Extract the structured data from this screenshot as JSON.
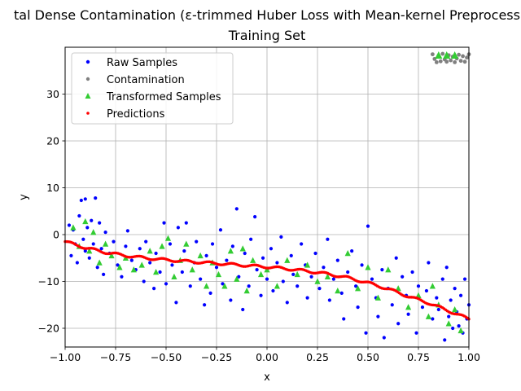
{
  "chart_data": {
    "type": "scatter",
    "title": "tal Dense Contamination (ε-trimmed Huber Loss with Mean-kernel Preprocess",
    "subtitle": "Training Set",
    "xlabel": "x",
    "ylabel": "y",
    "xlim": [
      -1.0,
      1.0
    ],
    "ylim": [
      -24,
      40
    ],
    "xticks": [
      "−1.00",
      "−0.75",
      "−0.50",
      "−0.25",
      "0.00",
      "0.25",
      "0.50",
      "0.75",
      "1.00"
    ],
    "yticks": [
      "−20",
      "−10",
      "0",
      "10",
      "20",
      "30"
    ],
    "grid": true,
    "legend_placement": "upper-left",
    "series": [
      {
        "name": "Raw Samples",
        "color": "#0000ff",
        "marker": "dot",
        "points": [
          [
            -0.98,
            2.0
          ],
          [
            -0.97,
            -4.5
          ],
          [
            -0.96,
            1.0
          ],
          [
            -0.95,
            -2.0
          ],
          [
            -0.94,
            -6.0
          ],
          [
            -0.93,
            4.0
          ],
          [
            -0.92,
            7.3
          ],
          [
            -0.91,
            -1.0
          ],
          [
            -0.9,
            7.6
          ],
          [
            -0.9,
            -3.5
          ],
          [
            -0.89,
            1.5
          ],
          [
            -0.88,
            -5.0
          ],
          [
            -0.87,
            3.0
          ],
          [
            -0.86,
            -2.0
          ],
          [
            -0.85,
            7.8
          ],
          [
            -0.84,
            -7.0
          ],
          [
            -0.83,
            2.5
          ],
          [
            -0.82,
            -3.0
          ],
          [
            -0.81,
            -8.5
          ],
          [
            -0.8,
            0.5
          ],
          [
            -0.78,
            -4.0
          ],
          [
            -0.76,
            -1.5
          ],
          [
            -0.74,
            -6.5
          ],
          [
            -0.72,
            -9.0
          ],
          [
            -0.7,
            -2.5
          ],
          [
            -0.69,
            0.8
          ],
          [
            -0.67,
            -5.5
          ],
          [
            -0.65,
            -7.5
          ],
          [
            -0.63,
            -3.0
          ],
          [
            -0.61,
            -10.0
          ],
          [
            -0.6,
            -1.5
          ],
          [
            -0.58,
            -6.0
          ],
          [
            -0.56,
            -11.5
          ],
          [
            -0.55,
            -4.0
          ],
          [
            -0.53,
            -8.0
          ],
          [
            -0.51,
            2.5
          ],
          [
            -0.5,
            -10.5
          ],
          [
            -0.48,
            -2.0
          ],
          [
            -0.47,
            -6.5
          ],
          [
            -0.45,
            -14.5
          ],
          [
            -0.44,
            1.5
          ],
          [
            -0.42,
            -8.0
          ],
          [
            -0.41,
            -3.5
          ],
          [
            -0.4,
            2.5
          ],
          [
            -0.38,
            -11.0
          ],
          [
            -0.36,
            -6.0
          ],
          [
            -0.35,
            -1.5
          ],
          [
            -0.33,
            -9.5
          ],
          [
            -0.31,
            -15.0
          ],
          [
            -0.3,
            -4.5
          ],
          [
            -0.28,
            -12.5
          ],
          [
            -0.27,
            -2.0
          ],
          [
            -0.25,
            -7.0
          ],
          [
            -0.23,
            1.0
          ],
          [
            -0.22,
            -10.5
          ],
          [
            -0.2,
            -5.5
          ],
          [
            -0.18,
            -14.0
          ],
          [
            -0.17,
            -2.5
          ],
          [
            -0.15,
            5.5
          ],
          [
            -0.14,
            -9.0
          ],
          [
            -0.12,
            -16.0
          ],
          [
            -0.11,
            -4.0
          ],
          [
            -0.09,
            -11.0
          ],
          [
            -0.08,
            -1.0
          ],
          [
            -0.06,
            3.8
          ],
          [
            -0.05,
            -7.5
          ],
          [
            -0.03,
            -13.0
          ],
          [
            -0.02,
            -5.0
          ],
          [
            0.0,
            -9.5
          ],
          [
            0.02,
            -3.0
          ],
          [
            0.03,
            -12.0
          ],
          [
            0.05,
            -6.0
          ],
          [
            0.07,
            -0.5
          ],
          [
            0.08,
            -10.0
          ],
          [
            0.1,
            -14.5
          ],
          [
            0.12,
            -4.5
          ],
          [
            0.13,
            -8.5
          ],
          [
            0.15,
            -11.0
          ],
          [
            0.17,
            -2.0
          ],
          [
            0.19,
            -6.5
          ],
          [
            0.2,
            -13.5
          ],
          [
            0.22,
            -9.0
          ],
          [
            0.24,
            -4.0
          ],
          [
            0.26,
            -11.5
          ],
          [
            0.28,
            -7.0
          ],
          [
            0.3,
            -1.0
          ],
          [
            0.31,
            -14.0
          ],
          [
            0.33,
            -9.5
          ],
          [
            0.35,
            -5.5
          ],
          [
            0.37,
            -12.5
          ],
          [
            0.38,
            -18.0
          ],
          [
            0.4,
            -8.0
          ],
          [
            0.42,
            -3.5
          ],
          [
            0.44,
            -11.0
          ],
          [
            0.45,
            -15.5
          ],
          [
            0.47,
            -6.5
          ],
          [
            0.49,
            -21.0
          ],
          [
            0.5,
            1.8
          ],
          [
            0.52,
            -9.5
          ],
          [
            0.54,
            -13.5
          ],
          [
            0.55,
            -17.5
          ],
          [
            0.57,
            -7.5
          ],
          [
            0.58,
            -22.0
          ],
          [
            0.6,
            -11.5
          ],
          [
            0.62,
            -15.0
          ],
          [
            0.64,
            -5.0
          ],
          [
            0.65,
            -19.0
          ],
          [
            0.67,
            -9.0
          ],
          [
            0.69,
            -13.0
          ],
          [
            0.7,
            -17.0
          ],
          [
            0.72,
            -8.0
          ],
          [
            0.74,
            -21.0
          ],
          [
            0.75,
            -11.0
          ],
          [
            0.77,
            -15.5
          ],
          [
            0.79,
            -12.0
          ],
          [
            0.8,
            -6.0
          ],
          [
            0.82,
            -18.0
          ],
          [
            0.84,
            -13.5
          ],
          [
            0.85,
            -16.0
          ],
          [
            0.87,
            -9.5
          ],
          [
            0.88,
            -22.5
          ],
          [
            0.89,
            -7.0
          ],
          [
            0.9,
            -17.5
          ],
          [
            0.91,
            -14.0
          ],
          [
            0.92,
            -20.0
          ],
          [
            0.93,
            -11.5
          ],
          [
            0.94,
            -16.5
          ],
          [
            0.95,
            -19.5
          ],
          [
            0.96,
            -13.0
          ],
          [
            0.97,
            -21.0
          ],
          [
            0.98,
            -9.5
          ],
          [
            0.99,
            -18.0
          ],
          [
            1.0,
            -15.0
          ]
        ]
      },
      {
        "name": "Contamination",
        "color": "#808080",
        "marker": "dot",
        "points": [
          [
            0.82,
            38.5
          ],
          [
            0.83,
            37.5
          ],
          [
            0.84,
            36.8
          ],
          [
            0.85,
            38.2
          ],
          [
            0.86,
            37.0
          ],
          [
            0.87,
            38.6
          ],
          [
            0.88,
            37.4
          ],
          [
            0.89,
            36.9
          ],
          [
            0.9,
            38.3
          ],
          [
            0.91,
            37.2
          ],
          [
            0.92,
            38.0
          ],
          [
            0.93,
            36.8
          ],
          [
            0.94,
            37.6
          ],
          [
            0.95,
            38.4
          ],
          [
            0.96,
            37.1
          ],
          [
            0.97,
            38.1
          ],
          [
            0.98,
            36.9
          ],
          [
            0.99,
            37.8
          ],
          [
            1.0,
            38.5
          ]
        ]
      },
      {
        "name": "Transformed Samples",
        "color": "#33cc33",
        "marker": "triangle",
        "points": [
          [
            -0.96,
            1.5
          ],
          [
            -0.93,
            -2.5
          ],
          [
            -0.9,
            2.8
          ],
          [
            -0.88,
            -3.5
          ],
          [
            -0.86,
            0.5
          ],
          [
            -0.83,
            -6.0
          ],
          [
            -0.8,
            -2.0
          ],
          [
            -0.77,
            -4.5
          ],
          [
            -0.73,
            -7.0
          ],
          [
            -0.7,
            -5.0
          ],
          [
            -0.66,
            -7.5
          ],
          [
            -0.62,
            -6.5
          ],
          [
            -0.58,
            -3.5
          ],
          [
            -0.55,
            -8.0
          ],
          [
            -0.52,
            -2.5
          ],
          [
            -0.49,
            -0.8
          ],
          [
            -0.46,
            -9.0
          ],
          [
            -0.43,
            -5.5
          ],
          [
            -0.4,
            -2.0
          ],
          [
            -0.37,
            -7.5
          ],
          [
            -0.33,
            -4.5
          ],
          [
            -0.3,
            -11.0
          ],
          [
            -0.27,
            -6.0
          ],
          [
            -0.24,
            -8.5
          ],
          [
            -0.21,
            -11.0
          ],
          [
            -0.18,
            -3.5
          ],
          [
            -0.15,
            -9.5
          ],
          [
            -0.12,
            -3.0
          ],
          [
            -0.1,
            -12.0
          ],
          [
            -0.07,
            -5.5
          ],
          [
            -0.03,
            -8.5
          ],
          [
            0.0,
            -7.5
          ],
          [
            0.05,
            -11.0
          ],
          [
            0.1,
            -5.5
          ],
          [
            0.15,
            -8.5
          ],
          [
            0.2,
            -6.5
          ],
          [
            0.25,
            -10.0
          ],
          [
            0.3,
            -9.0
          ],
          [
            0.35,
            -12.0
          ],
          [
            0.4,
            -4.0
          ],
          [
            0.45,
            -11.5
          ],
          [
            0.5,
            -7.0
          ],
          [
            0.55,
            -13.5
          ],
          [
            0.6,
            -7.5
          ],
          [
            0.65,
            -11.5
          ],
          [
            0.7,
            -15.5
          ],
          [
            0.75,
            -13.0
          ],
          [
            0.8,
            -17.5
          ],
          [
            0.82,
            -11.0
          ],
          [
            0.85,
            -15.0
          ],
          [
            0.9,
            -19.0
          ],
          [
            0.93,
            -16.0
          ],
          [
            0.96,
            -20.5
          ]
        ]
      },
      {
        "name": "Predictions",
        "color": "#ff0000",
        "marker": "dot",
        "curve": [
          [
            -1.0,
            -1.5
          ],
          [
            -0.9,
            -2.8
          ],
          [
            -0.8,
            -3.8
          ],
          [
            -0.7,
            -4.5
          ],
          [
            -0.6,
            -5.0
          ],
          [
            -0.5,
            -5.4
          ],
          [
            -0.4,
            -5.7
          ],
          [
            -0.3,
            -6.0
          ],
          [
            -0.2,
            -6.3
          ],
          [
            -0.1,
            -6.6
          ],
          [
            0.0,
            -6.9
          ],
          [
            0.1,
            -7.3
          ],
          [
            0.2,
            -7.8
          ],
          [
            0.3,
            -8.4
          ],
          [
            0.4,
            -9.2
          ],
          [
            0.5,
            -10.3
          ],
          [
            0.6,
            -11.6
          ],
          [
            0.7,
            -13.2
          ],
          [
            0.8,
            -14.6
          ],
          [
            0.9,
            -16.3
          ],
          [
            1.0,
            -18.0
          ]
        ]
      }
    ]
  }
}
